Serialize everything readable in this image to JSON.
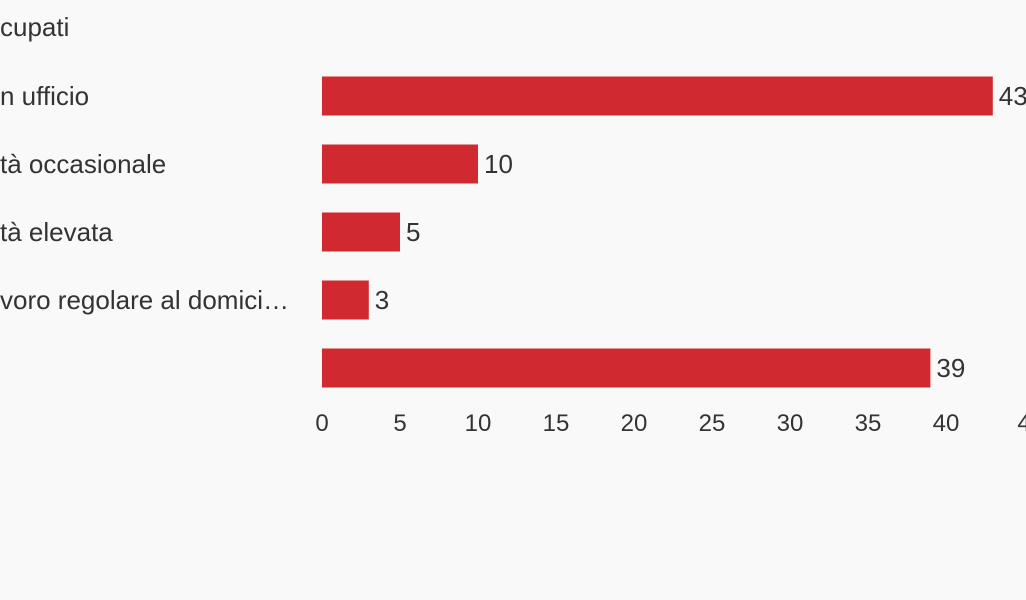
{
  "chart_data": {
    "type": "bar",
    "orientation": "horizontal",
    "title": "cupati",
    "categories": [
      "n ufficio",
      "tà occasionale",
      "tà elevata",
      "voro regolare al domici…",
      ""
    ],
    "values": [
      43,
      10,
      5,
      3,
      39
    ],
    "value_labels": [
      "43",
      "10",
      "5",
      "3",
      "39"
    ],
    "xticks": [
      "0",
      "5",
      "10",
      "15",
      "20",
      "25",
      "30",
      "35",
      "40",
      "4"
    ],
    "xlim": [
      0,
      45
    ],
    "grid": false,
    "bar_color": "#d0292f",
    "text_color": "#333333",
    "background": "#f9f9f9"
  }
}
